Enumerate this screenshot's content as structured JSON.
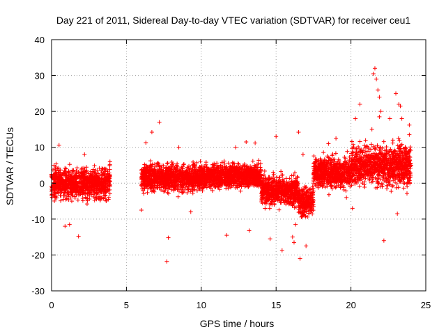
{
  "chart_data": {
    "type": "scatter",
    "title": "Day 221 of 2011, Sidereal Day-to-day VTEC variation (SDTVAR) for receiver ceu1",
    "xlabel": "GPS time / hours",
    "ylabel": "SDTVAR / TECUs",
    "xlim": [
      0,
      25
    ],
    "ylim": [
      -30,
      40
    ],
    "xticks": [
      "0",
      "5",
      "10",
      "15",
      "20",
      "25"
    ],
    "yticks": [
      "-30",
      "-20",
      "-10",
      "0",
      "10",
      "20",
      "30",
      "40"
    ],
    "grid": true,
    "marker": "+",
    "marker_color": "#ff0000",
    "series": [
      {
        "name": "SDTVAR",
        "segments": [
          {
            "x_start": 0.0,
            "x_end": 3.9,
            "center": 0.0,
            "spread": 4.5
          },
          {
            "x_start": 6.0,
            "x_end": 10.0,
            "center": 1.5,
            "spread": 4.0
          },
          {
            "x_start": 10.0,
            "x_end": 14.0,
            "center": 2.0,
            "spread": 3.5
          },
          {
            "x_start": 14.0,
            "x_end": 16.5,
            "center": -2.0,
            "spread": 4.5
          },
          {
            "x_start": 16.5,
            "x_end": 17.5,
            "center": -5.0,
            "spread": 4.5
          },
          {
            "x_start": 17.5,
            "x_end": 20.0,
            "center": 3.0,
            "spread": 4.5
          },
          {
            "x_start": 20.0,
            "x_end": 24.0,
            "center": 5.0,
            "spread": 6.0
          }
        ],
        "points": [
          [
            0.5,
            10.6
          ],
          [
            1.8,
            -14.8
          ],
          [
            1.2,
            -11.5
          ],
          [
            0.9,
            -12.0
          ],
          [
            2.2,
            8.0
          ],
          [
            3.9,
            6.0
          ],
          [
            3.8,
            -4.5
          ],
          [
            6.0,
            -7.5
          ],
          [
            6.3,
            11.3
          ],
          [
            6.7,
            14.2
          ],
          [
            7.2,
            17.0
          ],
          [
            7.8,
            -15.2
          ],
          [
            7.7,
            -21.8
          ],
          [
            8.5,
            10.0
          ],
          [
            9.3,
            -8.0
          ],
          [
            11.7,
            -14.5
          ],
          [
            12.3,
            10.0
          ],
          [
            13.0,
            11.5
          ],
          [
            13.6,
            11.2
          ],
          [
            13.2,
            -13.2
          ],
          [
            14.6,
            -15.5
          ],
          [
            15.0,
            13.0
          ],
          [
            15.4,
            -18.7
          ],
          [
            16.1,
            -15.0
          ],
          [
            16.2,
            -16.5
          ],
          [
            16.5,
            14.2
          ],
          [
            16.6,
            -21.0
          ],
          [
            16.3,
            -11.5
          ],
          [
            17.0,
            -17.5
          ],
          [
            16.8,
            8.0
          ],
          [
            18.5,
            11.0
          ],
          [
            19.0,
            12.5
          ],
          [
            19.7,
            -4.0
          ],
          [
            20.6,
            22.0
          ],
          [
            21.4,
            15.0
          ],
          [
            21.5,
            30.5
          ],
          [
            21.6,
            32.0
          ],
          [
            21.7,
            29.0
          ],
          [
            21.8,
            26.0
          ],
          [
            21.9,
            24.0
          ],
          [
            22.0,
            20.0
          ],
          [
            21.9,
            18.5
          ],
          [
            22.2,
            -16.0
          ],
          [
            22.6,
            18.0
          ],
          [
            22.8,
            12.0
          ],
          [
            23.0,
            25.0
          ],
          [
            23.2,
            22.0
          ],
          [
            23.3,
            21.5
          ],
          [
            23.4,
            18.0
          ],
          [
            23.1,
            -8.5
          ],
          [
            23.9,
            16.2
          ],
          [
            23.9,
            13.5
          ],
          [
            24.0,
            5.0
          ],
          [
            20.3,
            18.0
          ],
          [
            20.1,
            -7.0
          ]
        ]
      }
    ]
  }
}
